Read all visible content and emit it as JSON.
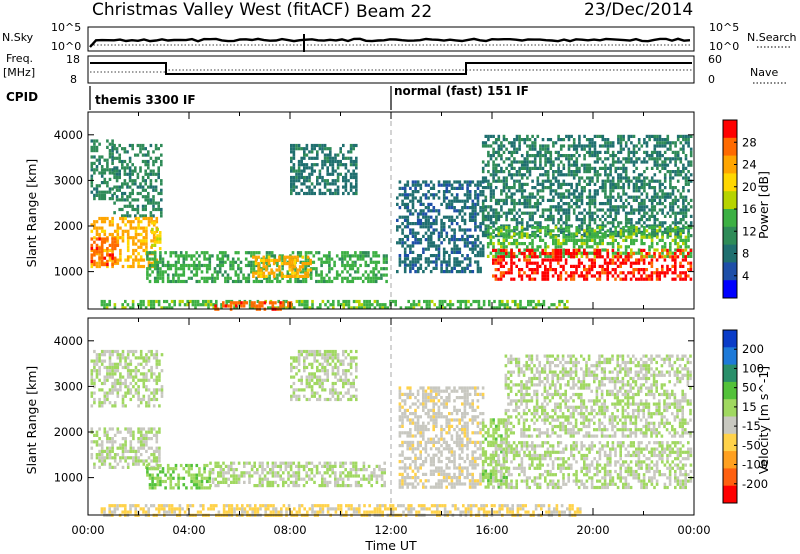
{
  "header": {
    "station": "Christmas Valley West (fitACF)",
    "beam": "Beam 22",
    "date": "23/Dec/2014"
  },
  "nsky_panel": {
    "left_label": "N.Sky",
    "right_label": "N.Search",
    "left_ticks": [
      "10^5",
      "10^0"
    ],
    "right_ticks": [
      "10^5",
      "10^0"
    ]
  },
  "freq_panel": {
    "left_label_1": "Freq.",
    "left_label_2": "[MHz]",
    "right_label": "Nave",
    "left_ticks": [
      "18",
      "8"
    ],
    "right_ticks": [
      "60",
      "0"
    ]
  },
  "cpid": {
    "label": "CPID",
    "modes": [
      "themis 3300 IF",
      "normal (fast) 151 IF"
    ]
  },
  "x_ticks": [
    "00:00",
    "04:00",
    "08:00",
    "12:00",
    "16:00",
    "20:00",
    "00:00"
  ],
  "x_label": "Time UT",
  "colorbars": {
    "power": {
      "label": "Power [dB]",
      "ticks": [
        "28",
        "24",
        "20",
        "16",
        "12",
        "8",
        "4"
      ],
      "colors": [
        "#ff0000",
        "#ff6a00",
        "#ffa500",
        "#ffd700",
        "#b7d400",
        "#3cb043",
        "#2e8b57",
        "#1f6f6f",
        "#1e4fa8",
        "#0000ff"
      ]
    },
    "velocity": {
      "label": "Velocity [m s^-1]",
      "ticks": [
        "200",
        "100",
        "50",
        "15",
        "-15",
        "-50",
        "-100",
        "-200"
      ],
      "colors": [
        "#0a3cc8",
        "#1e7ad8",
        "#2a8f6a",
        "#53c23a",
        "#a0d860",
        "#c8c8c0",
        "#ffd24a",
        "#ffa020",
        "#ff6010",
        "#ff0000"
      ]
    }
  },
  "chart_data": [
    {
      "type": "heatmap",
      "title": "Power",
      "ylabel": "Slant Range [km]",
      "xlabel": "",
      "x_range_hours_UT": [
        0,
        24
      ],
      "ylim": [
        180,
        4500
      ],
      "y_ticks": [
        1000,
        2000,
        3000,
        4000
      ],
      "quantity": "Power [dB]",
      "value_range": [
        0,
        30
      ],
      "scatter_regions": [
        {
          "t0": 0.1,
          "t1": 1.0,
          "r0": 2600,
          "r1": 3900,
          "value": 10
        },
        {
          "t0": 1.0,
          "t1": 2.9,
          "r0": 2200,
          "r1": 3800,
          "value": 10
        },
        {
          "t0": 0.1,
          "t1": 2.7,
          "r0": 1100,
          "r1": 2200,
          "value": 22
        },
        {
          "t0": 2.5,
          "t1": 2.9,
          "r0": 1400,
          "r1": 2100,
          "value": 18
        },
        {
          "t0": 0.1,
          "t1": 1.2,
          "r0": 1150,
          "r1": 1750,
          "value": 26
        },
        {
          "t0": 2.3,
          "t1": 11.8,
          "r0": 800,
          "r1": 1450,
          "value": 13
        },
        {
          "t0": 6.5,
          "t1": 8.8,
          "r0": 900,
          "r1": 1350,
          "value": 22
        },
        {
          "t0": 8.0,
          "t1": 10.6,
          "r0": 2700,
          "r1": 3800,
          "value": 8
        },
        {
          "t0": 12.2,
          "t1": 15.6,
          "r0": 1000,
          "r1": 3000,
          "value": 7
        },
        {
          "t0": 0.5,
          "t1": 19.0,
          "r0": 200,
          "r1": 380,
          "value": 14
        },
        {
          "t0": 5.0,
          "t1": 8.0,
          "r0": 200,
          "r1": 350,
          "value": 26
        },
        {
          "t0": 15.6,
          "t1": 23.9,
          "r0": 1800,
          "r1": 4000,
          "value": 9
        },
        {
          "t0": 15.8,
          "t1": 23.9,
          "r0": 1300,
          "r1": 2000,
          "value": 14
        },
        {
          "t0": 16.0,
          "t1": 23.9,
          "r0": 800,
          "r1": 1500,
          "value": 28
        }
      ]
    },
    {
      "type": "heatmap",
      "title": "Velocity",
      "ylabel": "Slant Range [km]",
      "xlabel": "Time UT",
      "x_range_hours_UT": [
        0,
        24
      ],
      "ylim": [
        180,
        4500
      ],
      "y_ticks": [
        1000,
        2000,
        3000,
        4000
      ],
      "quantity": "Velocity [m s^-1]",
      "value_range": [
        -250,
        250
      ],
      "scatter_regions": [
        {
          "t0": 0.1,
          "t1": 2.9,
          "r0": 2600,
          "r1": 3800,
          "value": 0
        },
        {
          "t0": 0.1,
          "t1": 2.8,
          "r0": 1200,
          "r1": 2100,
          "value": 0
        },
        {
          "t0": 2.3,
          "t1": 4.8,
          "r0": 800,
          "r1": 1300,
          "value": 40
        },
        {
          "t0": 4.8,
          "t1": 11.8,
          "r0": 800,
          "r1": 1350,
          "value": 0
        },
        {
          "t0": 8.0,
          "t1": 10.6,
          "r0": 2700,
          "r1": 3800,
          "value": 0
        },
        {
          "t0": 12.3,
          "t1": 15.6,
          "r0": 800,
          "r1": 3000,
          "value": -30
        },
        {
          "t0": 0.5,
          "t1": 19.5,
          "r0": 200,
          "r1": 420,
          "value": -60
        },
        {
          "t0": 15.6,
          "t1": 16.6,
          "r0": 800,
          "r1": 2300,
          "value": 30
        },
        {
          "t0": 16.0,
          "t1": 23.9,
          "r0": 800,
          "r1": 1800,
          "value": 0
        },
        {
          "t0": 16.5,
          "t1": 23.9,
          "r0": 1900,
          "r1": 3700,
          "value": 0
        }
      ]
    }
  ]
}
